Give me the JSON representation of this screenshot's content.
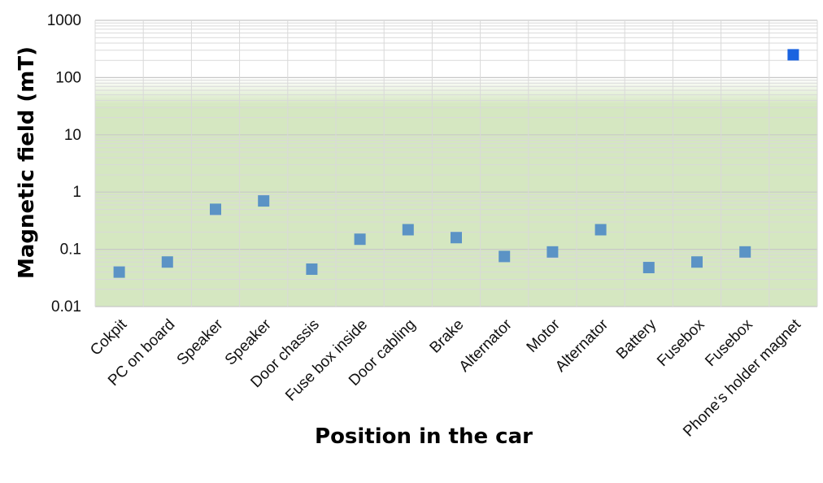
{
  "chart_data": {
    "type": "scatter",
    "title": "",
    "xlabel": "Position in the car",
    "ylabel": "Magnetic field (mT)",
    "y_scale": "log",
    "ylim": [
      0.01,
      1000
    ],
    "y_ticks": [
      "0.01",
      "0.1",
      "1",
      "10",
      "100",
      "1000"
    ],
    "grid": true,
    "shaded_band": {
      "from": 0.01,
      "to": 100,
      "color": "#d5e7c1"
    },
    "categories": [
      "Cokpit",
      "PC on board",
      "Speaker",
      "Speaker",
      "Door chassis",
      "Fuse box inside",
      "Door cabling",
      "Brake",
      "Alternator",
      "Motor",
      "Alternator",
      "Battery",
      "Fusebox",
      "Fusebox",
      "Phone’s holder magnet"
    ],
    "values": [
      0.04,
      0.06,
      0.5,
      0.7,
      0.045,
      0.15,
      0.22,
      0.16,
      0.075,
      0.09,
      0.22,
      0.048,
      0.06,
      0.09,
      250
    ],
    "marker_color": "#5b93c5",
    "highlight_color": "#1a63e0"
  }
}
